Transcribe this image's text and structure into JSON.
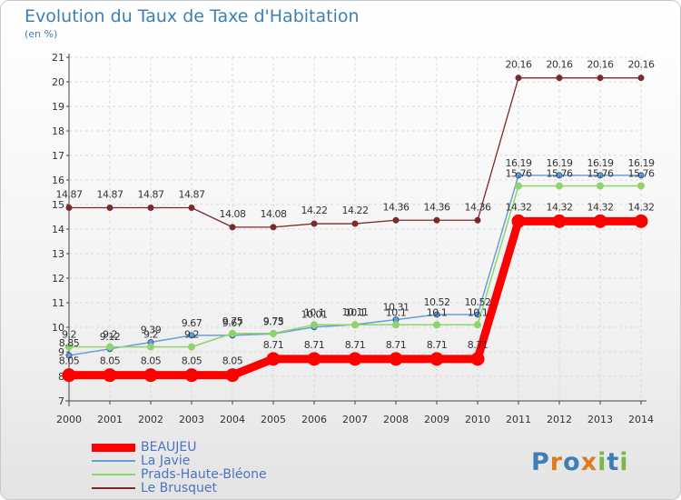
{
  "title": "Evolution du Taux de Taxe d'Habitation",
  "subtitle": "(en %)",
  "chart_data": {
    "type": "line",
    "x": [
      2000,
      2001,
      2002,
      2003,
      2004,
      2005,
      2006,
      2007,
      2008,
      2009,
      2010,
      2011,
      2012,
      2013,
      2014
    ],
    "ylim": [
      7,
      21
    ],
    "yticks": [
      7,
      8,
      9,
      10,
      11,
      12,
      13,
      14,
      15,
      16,
      17,
      18,
      19,
      20,
      21
    ],
    "grid": true,
    "legend_position": "bottom-left",
    "series": [
      {
        "name": "Le Brusquet",
        "color": "#7b2a2a",
        "values": [
          14.87,
          14.87,
          14.87,
          14.87,
          14.08,
          14.08,
          14.22,
          14.22,
          14.36,
          14.36,
          14.36,
          20.16,
          20.16,
          20.16,
          20.16
        ],
        "labels": [
          "14.87",
          "14.87",
          "14.87",
          "14.87",
          "14.08",
          "14.08",
          "14.22",
          "14.22",
          "14.36",
          "14.36",
          "14.36",
          "20.16",
          "20.16",
          "20.16",
          "20.16"
        ]
      },
      {
        "name": "La Javie",
        "color": "#6a9fd4",
        "values": [
          8.85,
          9.12,
          9.39,
          9.67,
          9.67,
          9.73,
          10.01,
          10.11,
          10.31,
          10.52,
          10.52,
          16.19,
          16.19,
          16.19,
          16.19
        ],
        "labels": [
          "8.85",
          "9.12",
          "9.39",
          "9.67",
          "9.67",
          "9.73",
          "10.01",
          "10.11",
          "10.31",
          "10.52",
          "10.52",
          "16.19",
          "16.19",
          "16.19",
          "16.19"
        ]
      },
      {
        "name": "Prads-Haute-Bléone",
        "color": "#8fd46a",
        "values": [
          9.2,
          9.2,
          9.2,
          9.2,
          9.75,
          9.75,
          10.1,
          10.1,
          10.1,
          10.1,
          10.1,
          15.76,
          15.76,
          15.76,
          15.76
        ],
        "labels": [
          "9.2",
          "9.2",
          "9.2",
          "9.2",
          "9.75",
          "9.75",
          "10.1",
          "10.1",
          "10.1",
          "10.1",
          "10.1",
          "15.76",
          "15.76",
          "15.76",
          "15.76"
        ]
      },
      {
        "name": "BEAUJEU",
        "color": "#ff0000",
        "values": [
          8.05,
          8.05,
          8.05,
          8.05,
          8.05,
          8.71,
          8.71,
          8.71,
          8.71,
          8.71,
          8.71,
          14.32,
          14.32,
          14.32,
          14.32
        ],
        "labels": [
          "8.05",
          "8.05",
          "8.05",
          "8.05",
          "8.05",
          "8.71",
          "8.71",
          "8.71",
          "8.71",
          "8.71",
          "8.71",
          "14.32",
          "14.32",
          "14.32",
          "14.32"
        ]
      }
    ]
  },
  "legend": [
    {
      "name": "BEAUJEU",
      "color": "#ff0000"
    },
    {
      "name": "La Javie",
      "color": "#6a9fd4"
    },
    {
      "name": "Prads-Haute-Bléone",
      "color": "#8fd46a"
    },
    {
      "name": "Le Brusquet",
      "color": "#7b2a2a"
    }
  ],
  "logo": {
    "letters": [
      "P",
      "r",
      "o",
      "x",
      "i",
      "t",
      "i"
    ],
    "colors": [
      "#3d7fb5",
      "#e07a1f",
      "#3d7fb5",
      "#e07a1f",
      "#7bb84a",
      "#3d7fb5",
      "#7bb84a"
    ]
  }
}
